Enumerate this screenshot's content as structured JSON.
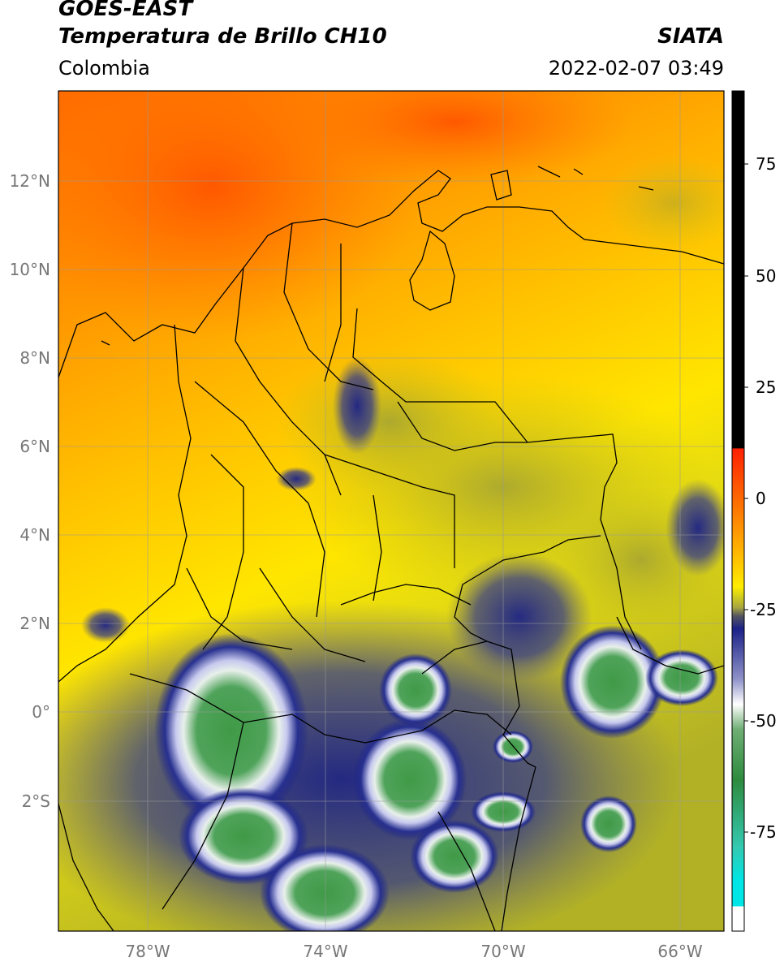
{
  "header": {
    "satellite": "GOES-EAST",
    "product": "Temperatura de Brillo CH10",
    "region": "Colombia",
    "source": "SIATA",
    "datetime": "2022-02-07 03:49"
  },
  "map": {
    "lat_labels": [
      "12°N",
      "10°N",
      "8°N",
      "6°N",
      "4°N",
      "2°N",
      "0°",
      "2°S"
    ],
    "lon_labels": [
      "78°W",
      "74°W",
      "70°W",
      "66°W"
    ],
    "gridlines": true
  },
  "colorbar": {
    "ticks": [
      "75",
      "50",
      "25",
      "0",
      "-25",
      "-50",
      "-75"
    ],
    "colors": {
      "hot": "#ff5a00",
      "warm": "#ffe600",
      "olive": "#b7b424",
      "navy": "#1b2187",
      "white": "#ffffff",
      "green": "#2e8b3e",
      "teal": "#33c9b0",
      "cyan": "#00e5e5",
      "black": "#000000",
      "red": "#ff2000"
    }
  }
}
